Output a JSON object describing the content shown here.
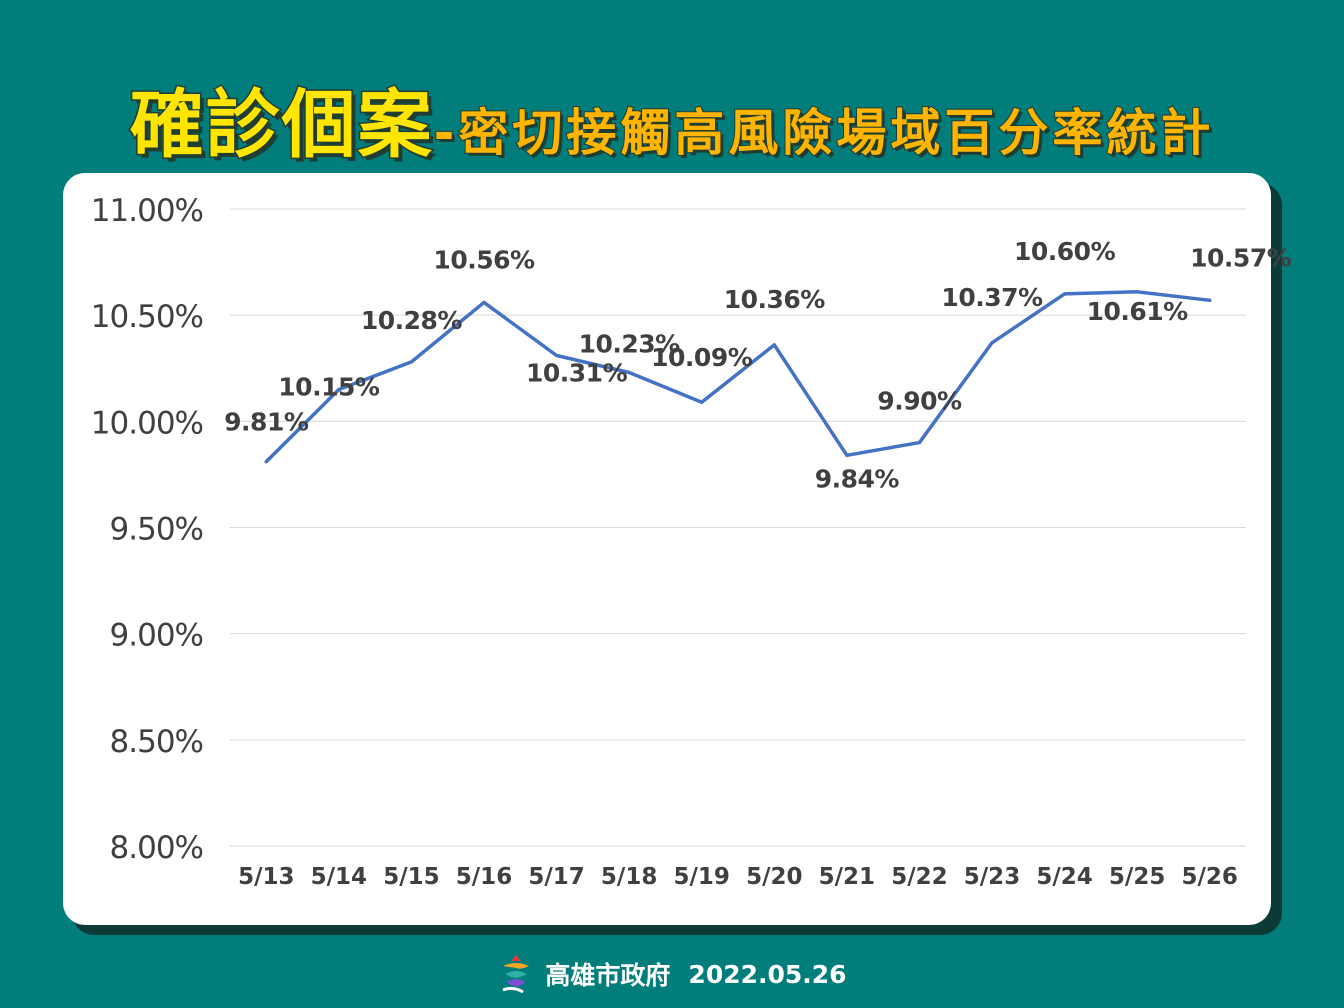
{
  "title": {
    "main": "確診個案",
    "dash": "-",
    "sub": "密切接觸高風險場域百分率統計"
  },
  "footer": {
    "org": "高雄市政府",
    "date": "2022.05.26"
  },
  "colors": {
    "background": "#017d7b",
    "title_main": "#ffe500",
    "title_sub": "#ffb400",
    "line": "#4472c4",
    "text": "#404040"
  },
  "chart_data": {
    "type": "line",
    "categories": [
      "5/13",
      "5/14",
      "5/15",
      "5/16",
      "5/17",
      "5/18",
      "5/19",
      "5/20",
      "5/21",
      "5/22",
      "5/23",
      "5/24",
      "5/25",
      "5/26"
    ],
    "series": [
      {
        "values": [
          9.81,
          10.15,
          10.28,
          10.56,
          10.31,
          10.23,
          10.09,
          10.36,
          9.84,
          9.9,
          10.37,
          10.6,
          10.61,
          10.57
        ]
      }
    ],
    "data_labels": [
      "9.81%",
      "10.15%",
      "10.28%",
      "10.56%",
      "10.31%",
      "10.23%",
      "10.09%",
      "10.36%",
      "9.84%",
      "9.90%",
      "10.37%",
      "10.60%",
      "10.61%",
      "10.57%"
    ],
    "y_ticks": [
      "8.00%",
      "8.50%",
      "9.00%",
      "9.50%",
      "10.00%",
      "10.50%",
      "11.00%"
    ],
    "ylim": [
      8.0,
      11.0
    ],
    "grid": true,
    "legend": "none"
  }
}
